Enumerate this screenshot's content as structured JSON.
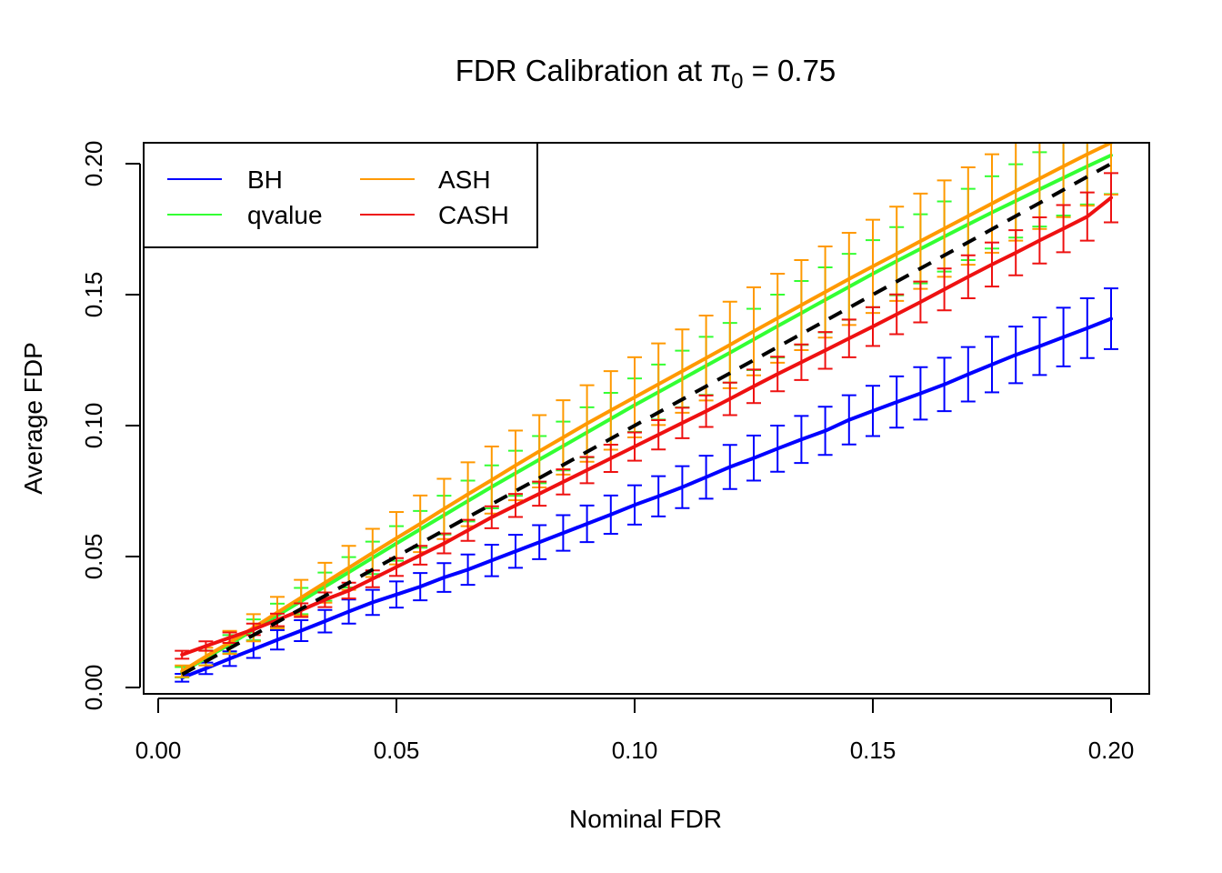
{
  "chart_data": {
    "type": "line",
    "title": {
      "prefix": "FDR Calibration at ",
      "symbol": "π",
      "subscript": "0",
      "suffix": " = 0.75"
    },
    "xlabel": "Nominal FDR",
    "ylabel": "Average FDP",
    "xlim": [
      0.0,
      0.2
    ],
    "ylim": [
      0.0,
      0.2
    ],
    "x_ticks": [
      0.0,
      0.05,
      0.1,
      0.15,
      0.2
    ],
    "x_tick_labels": [
      "0.00",
      "0.05",
      "0.10",
      "0.15",
      "0.20"
    ],
    "y_ticks": [
      0.0,
      0.05,
      0.1,
      0.15,
      0.2
    ],
    "y_tick_labels": [
      "0.00",
      "0.05",
      "0.10",
      "0.15",
      "0.20"
    ],
    "grid": false,
    "legend_position": "top-left",
    "x": [
      0.005,
      0.01,
      0.015,
      0.02,
      0.025,
      0.03,
      0.035,
      0.04,
      0.045,
      0.05,
      0.055,
      0.06,
      0.065,
      0.07,
      0.075,
      0.08,
      0.085,
      0.09,
      0.095,
      0.1,
      0.105,
      0.11,
      0.115,
      0.12,
      0.125,
      0.13,
      0.135,
      0.14,
      0.145,
      0.15,
      0.155,
      0.16,
      0.165,
      0.17,
      0.175,
      0.18,
      0.185,
      0.19,
      0.195,
      0.2
    ],
    "reference_line": {
      "style": "dashed",
      "color": "#000000",
      "from": [
        0.005,
        0.005
      ],
      "to": [
        0.2,
        0.2
      ]
    },
    "series": [
      {
        "name": "BH",
        "color": "#0000ff",
        "values": [
          0.0037,
          0.0073,
          0.011,
          0.0146,
          0.0182,
          0.0217,
          0.0253,
          0.029,
          0.0325,
          0.0355,
          0.0385,
          0.042,
          0.045,
          0.0485,
          0.052,
          0.0555,
          0.059,
          0.0625,
          0.066,
          0.0697,
          0.073,
          0.0765,
          0.0803,
          0.0842,
          0.0876,
          0.0912,
          0.0947,
          0.098,
          0.1022,
          0.1056,
          0.109,
          0.1123,
          0.1157,
          0.1196,
          0.1233,
          0.127,
          0.1303,
          0.1338,
          0.1372,
          0.1408
        ],
        "error": [
          0.0015,
          0.0022,
          0.0028,
          0.0033,
          0.0037,
          0.004,
          0.0043,
          0.0046,
          0.0048,
          0.005,
          0.0052,
          0.0055,
          0.0058,
          0.006,
          0.0063,
          0.0065,
          0.0068,
          0.007,
          0.0073,
          0.0075,
          0.0077,
          0.008,
          0.0082,
          0.0084,
          0.0086,
          0.0088,
          0.009,
          0.0092,
          0.0094,
          0.0096,
          0.0098,
          0.01,
          0.0102,
          0.0104,
          0.0106,
          0.0108,
          0.011,
          0.0112,
          0.0114,
          0.0116
        ]
      },
      {
        "name": "qvalue",
        "color": "#33ff33",
        "values": [
          0.0058,
          0.0113,
          0.0165,
          0.022,
          0.0275,
          0.033,
          0.0385,
          0.044,
          0.0495,
          0.055,
          0.0604,
          0.0658,
          0.0712,
          0.0766,
          0.0818,
          0.087,
          0.0922,
          0.0974,
          0.1026,
          0.1078,
          0.1128,
          0.1178,
          0.1228,
          0.1278,
          0.1329,
          0.138,
          0.143,
          0.148,
          0.153,
          0.158,
          0.1628,
          0.1675,
          0.1722,
          0.1768,
          0.1814,
          0.1858,
          0.1902,
          0.1946,
          0.199,
          0.2032
        ],
        "error": [
          0.002,
          0.0028,
          0.0035,
          0.004,
          0.0045,
          0.005,
          0.0054,
          0.0058,
          0.0062,
          0.0066,
          0.007,
          0.0074,
          0.0078,
          0.0082,
          0.0086,
          0.009,
          0.0093,
          0.0096,
          0.0099,
          0.0102,
          0.0105,
          0.0108,
          0.0111,
          0.0114,
          0.0117,
          0.012,
          0.0122,
          0.0124,
          0.0126,
          0.0128,
          0.013,
          0.0132,
          0.0134,
          0.0136,
          0.0138,
          0.014,
          0.0142,
          0.0144,
          0.0146,
          0.0148
        ]
      },
      {
        "name": "ASH",
        "color": "#ff9900",
        "values": [
          0.0062,
          0.0118,
          0.0172,
          0.0228,
          0.0286,
          0.0343,
          0.04,
          0.0457,
          0.0514,
          0.057,
          0.0625,
          0.0682,
          0.0738,
          0.0792,
          0.0848,
          0.0902,
          0.0955,
          0.1008,
          0.1058,
          0.1108,
          0.1158,
          0.1208,
          0.1258,
          0.1308,
          0.136,
          0.141,
          0.146,
          0.151,
          0.156,
          0.1608,
          0.1656,
          0.1704,
          0.1752,
          0.18,
          0.1848,
          0.1896,
          0.1943,
          0.199,
          0.2036,
          0.208
        ],
        "error": [
          0.0022,
          0.0034,
          0.0044,
          0.0052,
          0.006,
          0.0068,
          0.0076,
          0.0084,
          0.0092,
          0.01,
          0.0108,
          0.0115,
          0.0122,
          0.0128,
          0.0133,
          0.0138,
          0.0142,
          0.0146,
          0.015,
          0.0153,
          0.0156,
          0.0159,
          0.0162,
          0.0165,
          0.0168,
          0.017,
          0.0172,
          0.0174,
          0.0176,
          0.0178,
          0.018,
          0.0182,
          0.0184,
          0.0186,
          0.0188,
          0.019,
          0.0192,
          0.0194,
          0.0196,
          0.0198
        ]
      },
      {
        "name": "CASH",
        "color": "#ee1111",
        "values": [
          0.0125,
          0.0158,
          0.019,
          0.0222,
          0.0258,
          0.0295,
          0.0335,
          0.037,
          0.0415,
          0.046,
          0.0505,
          0.055,
          0.06,
          0.065,
          0.0695,
          0.074,
          0.0785,
          0.083,
          0.0875,
          0.092,
          0.0965,
          0.101,
          0.1055,
          0.1102,
          0.115,
          0.1197,
          0.1242,
          0.1287,
          0.1333,
          0.1378,
          0.1425,
          0.1472,
          0.152,
          0.1568,
          0.1615,
          0.166,
          0.1707,
          0.1752,
          0.1798,
          0.187
        ],
        "error": [
          0.0015,
          0.0018,
          0.002,
          0.0022,
          0.0024,
          0.0026,
          0.0028,
          0.003,
          0.0032,
          0.0034,
          0.0036,
          0.0038,
          0.004,
          0.0042,
          0.0044,
          0.0046,
          0.0048,
          0.005,
          0.0052,
          0.0054,
          0.0056,
          0.0058,
          0.006,
          0.0062,
          0.0064,
          0.0066,
          0.0068,
          0.007,
          0.0072,
          0.0074,
          0.0076,
          0.0078,
          0.008,
          0.0082,
          0.0084,
          0.0086,
          0.0088,
          0.009,
          0.0092,
          0.0094
        ]
      }
    ]
  }
}
